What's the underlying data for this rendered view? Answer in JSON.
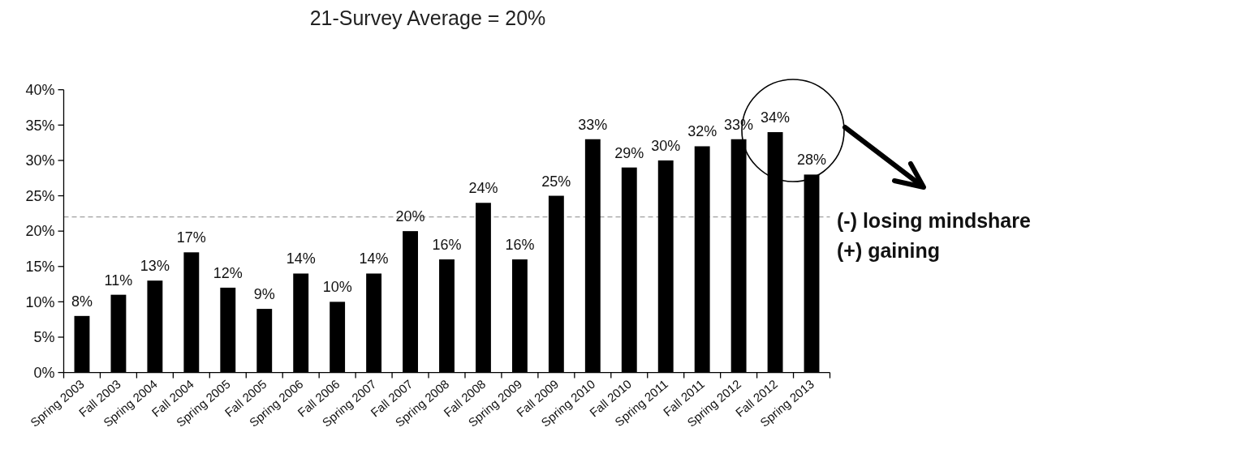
{
  "chart_data": {
    "type": "bar",
    "title": "21-Survey Average = 20%",
    "categories": [
      "Spring 2003",
      "Fall 2003",
      "Spring 2004",
      "Fall 2004",
      "Spring 2005",
      "Fall 2005",
      "Spring 2006",
      "Fall 2006",
      "Spring 2007",
      "Fall 2007",
      "Spring 2008",
      "Fall 2008",
      "Spring 2009",
      "Fall 2009",
      "Spring 2010",
      "Fall 2010",
      "Spring 2011",
      "Fall 2011",
      "Spring 2012",
      "Fall 2012",
      "Spring 2013"
    ],
    "values": [
      8,
      11,
      13,
      17,
      12,
      9,
      14,
      10,
      14,
      20,
      16,
      24,
      16,
      25,
      33,
      29,
      30,
      32,
      33,
      34,
      28
    ],
    "value_labels": [
      "8%",
      "11%",
      "13%",
      "17%",
      "12%",
      "9%",
      "14%",
      "10%",
      "14%",
      "20%",
      "16%",
      "24%",
      "16%",
      "25%",
      "33%",
      "29%",
      "30%",
      "32%",
      "33%",
      "34%",
      "28%"
    ],
    "color": "#000000",
    "ylim": [
      0,
      40
    ],
    "yticks": [
      {
        "value": 0,
        "label": "0%"
      },
      {
        "value": 5,
        "label": "5%"
      },
      {
        "value": 10,
        "label": "10%"
      },
      {
        "value": 15,
        "label": "15%"
      },
      {
        "value": 20,
        "label": "20%"
      },
      {
        "value": 25,
        "label": "25%"
      },
      {
        "value": 30,
        "label": "30%"
      },
      {
        "value": 35,
        "label": "35%"
      },
      {
        "value": 40,
        "label": "40%"
      }
    ],
    "ref_lines": [
      {
        "axis": "y",
        "value": 22,
        "color": "#a0a0a0",
        "line_style": "dashed"
      }
    ],
    "annotations": [
      "(-) losing mindshare",
      "(+) gaining"
    ]
  }
}
